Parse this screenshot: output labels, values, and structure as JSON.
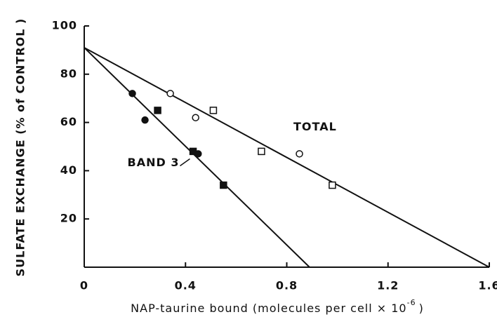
{
  "chart_data": {
    "type": "scatter",
    "ylabel": "SULFATE EXCHANGE (% of CONTROL )",
    "xlabel": {
      "text": "NAP-taurine bound (molecules per cell × 10",
      "exponent": "-6",
      "close": ")"
    },
    "xlim": [
      0,
      1.6
    ],
    "ylim": [
      0,
      100
    ],
    "xticks": [
      0,
      0.4,
      0.8,
      1.2,
      1.6
    ],
    "yticks": [
      20,
      40,
      60,
      80,
      100
    ],
    "color": "#111111",
    "series": [
      {
        "marker": "circle",
        "filled": false,
        "x": [
          0.34,
          0.44,
          0.85
        ],
        "values": [
          72,
          62,
          47
        ]
      },
      {
        "marker": "square",
        "filled": false,
        "x": [
          0.51,
          0.7,
          0.98
        ],
        "values": [
          65,
          48,
          34
        ]
      },
      {
        "marker": "circle",
        "filled": true,
        "x": [
          0.19,
          0.24,
          0.45
        ],
        "values": [
          72,
          61,
          47
        ]
      },
      {
        "marker": "square",
        "filled": true,
        "x": [
          0.29,
          0.43,
          0.55
        ],
        "values": [
          65,
          48,
          34
        ]
      }
    ],
    "lines": [
      {
        "name": "TOTAL",
        "x": [
          0,
          1.6
        ],
        "values": [
          91,
          0
        ]
      },
      {
        "name": "BAND 3",
        "x": [
          0,
          0.89
        ],
        "values": [
          91,
          0
        ]
      }
    ]
  }
}
